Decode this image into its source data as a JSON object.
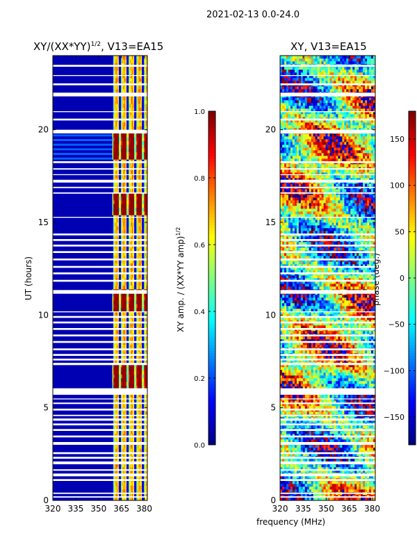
{
  "figure": {
    "suptitle": "2021-02-13 0.0-24.0",
    "xlabel": "frequency (MHz)"
  },
  "panels": [
    {
      "title_main": "XY/(XX*YY)",
      "title_sup": "1/2",
      "title_rest": ", V13=EA15",
      "ylabel": "UT (hours)",
      "colorbar_label_main": "XY amp. / (XX*YY amp)",
      "colorbar_label_sup": "1/2"
    },
    {
      "title_main": "XY, V13=EA15",
      "ylabel": "",
      "colorbar_label_main": "phase (deg.)"
    }
  ],
  "chart_data": [
    {
      "type": "heatmap",
      "title": "XY/(XX*YY)^1/2, V13=EA15",
      "xlabel": "frequency (MHz)",
      "ylabel": "UT (hours)",
      "xlim": [
        320,
        382
      ],
      "ylim": [
        0,
        24
      ],
      "xticks": [
        320,
        335,
        350,
        365,
        380
      ],
      "xtick_labels": [
        "320",
        "335",
        "350",
        "365",
        "380"
      ],
      "yticks": [
        0,
        5,
        10,
        15,
        20
      ],
      "ytick_labels": [
        "0",
        "5",
        "10",
        "15",
        "20"
      ],
      "colormap": "jet",
      "colorbar": {
        "label": "XY amp. / (XX*YY amp)^1/2",
        "range": [
          0.0,
          1.0
        ],
        "ticks": [
          0.0,
          0.2,
          0.4,
          0.6,
          0.8,
          1.0
        ],
        "tick_labels": [
          "0.0",
          "0.2",
          "0.4",
          "0.6",
          "0.8",
          "1.0"
        ]
      },
      "description_values": {
        "low_band_mhz": [
          320,
          359
        ],
        "low_band_value": 0.05,
        "high_band_mhz": [
          359,
          380
        ],
        "high_band_value_range": [
          0.3,
          0.95
        ],
        "bright_ut_hours": [
          [
            6.0,
            7.3
          ],
          [
            10.2,
            11.2
          ],
          [
            15.3,
            16.5
          ],
          [
            18.3,
            19.8
          ]
        ]
      }
    },
    {
      "type": "heatmap",
      "title": "XY, V13=EA15",
      "xlabel": "frequency (MHz)",
      "ylabel": "",
      "xlim": [
        320,
        382
      ],
      "ylim": [
        0,
        24
      ],
      "xticks": [
        320,
        335,
        350,
        365,
        380
      ],
      "xtick_labels": [
        "320",
        "335",
        "350",
        "365",
        "380"
      ],
      "yticks": [
        0,
        5,
        10,
        15,
        20
      ],
      "ytick_labels": [
        "0",
        "5",
        "10",
        "15",
        "20"
      ],
      "colormap": "jet",
      "colorbar": {
        "label": "phase (deg.)",
        "range": [
          -180,
          180
        ],
        "ticks": [
          -150,
          -100,
          -50,
          0,
          50,
          100,
          150
        ],
        "tick_labels": [
          "−150",
          "−100",
          "−50",
          "0",
          "50",
          "100",
          "150"
        ]
      }
    }
  ],
  "gaps_ut_hours": [
    [
      0.15,
      0.22
    ],
    [
      0.35,
      0.42
    ],
    [
      1.05,
      1.15
    ],
    [
      1.3,
      1.45
    ],
    [
      1.6,
      1.68
    ],
    [
      1.95,
      2.1
    ],
    [
      2.25,
      2.35
    ],
    [
      2.5,
      2.6
    ],
    [
      3.0,
      3.15
    ],
    [
      3.4,
      3.5
    ],
    [
      3.75,
      3.85
    ],
    [
      4.05,
      4.15
    ],
    [
      4.3,
      4.42
    ],
    [
      4.55,
      4.62
    ],
    [
      4.85,
      4.95
    ],
    [
      5.2,
      5.28
    ],
    [
      5.45,
      5.5
    ],
    [
      5.7,
      6.05
    ],
    [
      7.3,
      7.42
    ],
    [
      7.55,
      7.65
    ],
    [
      7.8,
      7.9
    ],
    [
      8.1,
      8.2
    ],
    [
      8.5,
      8.6
    ],
    [
      8.85,
      8.95
    ],
    [
      9.2,
      9.3
    ],
    [
      9.55,
      9.65
    ],
    [
      9.85,
      9.95
    ],
    [
      10.15,
      10.2
    ],
    [
      11.15,
      11.35
    ],
    [
      11.8,
      11.9
    ],
    [
      12.2,
      12.3
    ],
    [
      12.55,
      12.65
    ],
    [
      12.95,
      13.05
    ],
    [
      13.35,
      13.45
    ],
    [
      13.7,
      13.8
    ],
    [
      14.0,
      14.1
    ],
    [
      14.3,
      14.4
    ],
    [
      15.25,
      15.3
    ],
    [
      16.55,
      16.62
    ],
    [
      16.85,
      16.92
    ],
    [
      17.15,
      17.3
    ],
    [
      17.55,
      17.6
    ],
    [
      17.85,
      17.92
    ],
    [
      18.2,
      18.3
    ],
    [
      19.8,
      20.0
    ],
    [
      20.5,
      20.6
    ],
    [
      20.95,
      21.0
    ],
    [
      21.8,
      22.0
    ],
    [
      22.4,
      22.5
    ],
    [
      22.9,
      22.95
    ],
    [
      23.4,
      23.5
    ]
  ]
}
